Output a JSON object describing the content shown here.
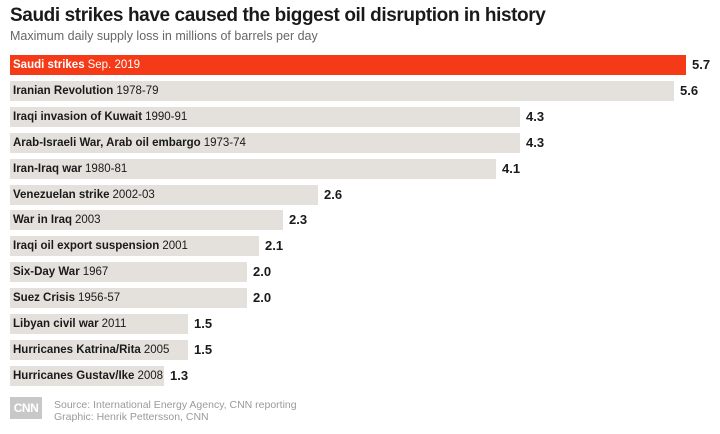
{
  "header": {
    "title": "Saudi strikes have caused the biggest oil disruption in history",
    "subtitle": "Maximum daily supply loss in millions of barrels per day"
  },
  "footer": {
    "logo_text": "CNN",
    "source": "Source: International Energy Agency, CNN reporting",
    "graphic": "Graphic: Henrik Pettersson, CNN"
  },
  "colors": {
    "highlight_bar": "#f53a18",
    "bar": "#e4e1dc",
    "highlight_text": "#ffffff",
    "text": "#1a1a1a"
  },
  "chart_data": {
    "type": "bar",
    "orientation": "horizontal",
    "title": "Saudi strikes have caused the biggest oil disruption in history",
    "subtitle": "Maximum daily supply loss in millions of barrels per day",
    "categories": [
      {
        "name": "Saudi strikes",
        "period": "Sep. 2019"
      },
      {
        "name": "Iranian Revolution",
        "period": "1978-79"
      },
      {
        "name": "Iraqi invasion of Kuwait",
        "period": "1990-91"
      },
      {
        "name": "Arab-Israeli War, Arab oil embargo",
        "period": "1973-74"
      },
      {
        "name": "Iran-Iraq war",
        "period": "1980-81"
      },
      {
        "name": "Venezuelan strike",
        "period": "2002-03"
      },
      {
        "name": "War in Iraq",
        "period": "2003"
      },
      {
        "name": "Iraqi oil export suspension",
        "period": "2001"
      },
      {
        "name": "Six-Day War",
        "period": "1967"
      },
      {
        "name": "Suez Crisis",
        "period": "1956-57"
      },
      {
        "name": "Libyan civil war",
        "period": "2011"
      },
      {
        "name": "Hurricanes Katrina/Rita",
        "period": "2005"
      },
      {
        "name": "Hurricanes Gustav/Ike",
        "period": "2008"
      }
    ],
    "values": [
      5.7,
      5.6,
      4.3,
      4.3,
      4.1,
      2.6,
      2.3,
      2.1,
      2.0,
      2.0,
      1.5,
      1.5,
      1.3
    ],
    "value_labels": [
      "5.7",
      "5.6",
      "4.3",
      "4.3",
      "4.1",
      "2.6",
      "2.3",
      "2.1",
      "2.0",
      "2.0",
      "1.5",
      "1.5",
      "1.3"
    ],
    "highlight_index": 0,
    "xlim": [
      0,
      5.7
    ],
    "grid": false,
    "legend": "none"
  }
}
